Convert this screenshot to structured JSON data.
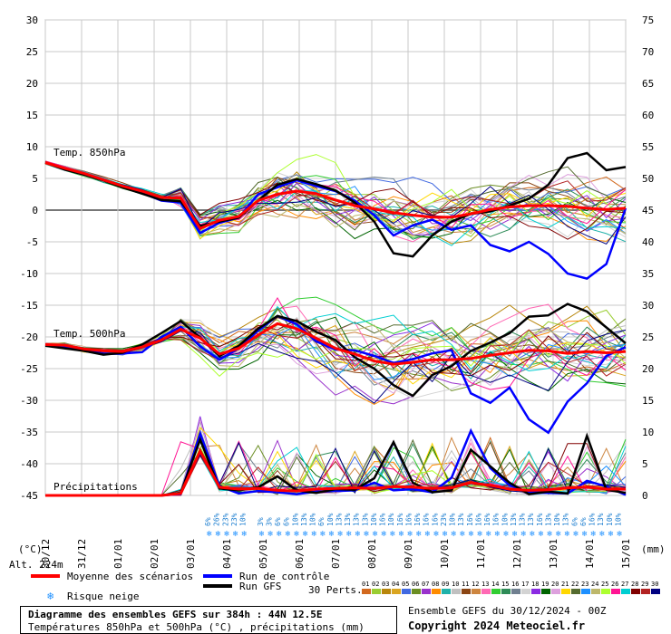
{
  "chart_data": {
    "type": "line",
    "title": "Diagramme des ensembles GEFS sur 384h : 44N 12.5E",
    "subtitle": "Températures 850hPa et 500hPa (°C) , précipitations (mm)",
    "left_axis": {
      "label": "(°C)",
      "ticks": [
        30,
        25,
        20,
        15,
        10,
        5,
        0,
        -5,
        -10,
        -15,
        -20,
        -25,
        -30,
        -35,
        -40,
        -45
      ],
      "range": [
        -45,
        30
      ]
    },
    "right_axis": {
      "label": "(mm)",
      "ticks": [
        75,
        70,
        65,
        60,
        55,
        50,
        45,
        40,
        35,
        30,
        25,
        20,
        15,
        10,
        5,
        0
      ],
      "range": [
        0,
        75
      ]
    },
    "x_dates": [
      "30/12",
      "31/12",
      "01/01",
      "02/01",
      "03/01",
      "04/01",
      "05/01",
      "06/01",
      "07/01",
      "08/01",
      "09/01",
      "10/01",
      "11/01",
      "12/01",
      "13/01",
      "14/01",
      "15/01"
    ],
    "panel_labels": {
      "t850": "Temp. 850hPa",
      "t500": "Temp. 500hPa",
      "precip": "Précipitations"
    },
    "grid": true,
    "series": [
      {
        "name": "Moyenne des scénarios",
        "color": "#ff0000",
        "t850": [
          7.5,
          6.6,
          5.8,
          4.8,
          3.8,
          3.0,
          2.0,
          1.9,
          -2.9,
          -1.6,
          -1.0,
          1.5,
          2.5,
          3.0,
          2.6,
          1.6,
          0.7,
          0.2,
          -0.4,
          -0.8,
          -1.1,
          -1.1,
          -0.6,
          0.1,
          0.5,
          0.7,
          0.7,
          0.6,
          0.3,
          0.1,
          0.3
        ],
        "t500": [
          -21.2,
          -21.3,
          -21.9,
          -22.2,
          -22.3,
          -21.6,
          -20.5,
          -18.8,
          -20.2,
          -22.7,
          -21.8,
          -19.7,
          -17.9,
          -18.7,
          -20.2,
          -21.8,
          -22.7,
          -23.8,
          -24.3,
          -24.0,
          -23.6,
          -23.6,
          -23.4,
          -22.9,
          -22.5,
          -22.1,
          -22.2,
          -22.6,
          -22.3,
          -22.5,
          -22.3
        ],
        "precip": [
          0,
          0,
          0,
          0,
          0,
          0,
          0,
          0.3,
          7.0,
          1.3,
          1.0,
          1.1,
          0.8,
          0.7,
          1.0,
          1.1,
          1.2,
          1.1,
          1.4,
          1.3,
          1.1,
          1.2,
          2.0,
          1.6,
          1.0,
          0.8,
          0.9,
          1.2,
          1.3,
          1.0,
          1.0
        ]
      },
      {
        "name": "Run de contrôle",
        "color": "#0000ff",
        "t850": [
          7.5,
          6.4,
          5.6,
          4.7,
          3.7,
          2.7,
          1.5,
          1.2,
          -3.6,
          -2.0,
          -1.2,
          2.5,
          3.6,
          4.7,
          3.8,
          3.0,
          1.5,
          -0.8,
          -4.0,
          -2.4,
          -1.5,
          -3.1,
          -2.4,
          -5.5,
          -6.5,
          -5.0,
          -6.9,
          -10.0,
          -10.8,
          -8.5,
          0.3
        ],
        "t500": [
          -21.2,
          -21.6,
          -22.2,
          -22.7,
          -22.6,
          -22.4,
          -20.0,
          -18.4,
          -21.5,
          -23.6,
          -21.8,
          -19.0,
          -16.7,
          -18.0,
          -20.7,
          -22.0,
          -22.1,
          -23.0,
          -24.1,
          -23.5,
          -22.6,
          -22.1,
          -28.9,
          -30.4,
          -28.0,
          -33.0,
          -35.1,
          -30.2,
          -27.3,
          -23.0,
          -21.6
        ],
        "precip": [
          0,
          0,
          0,
          0,
          0,
          0,
          0,
          0.2,
          9.8,
          1.5,
          0.3,
          0.7,
          0.5,
          0.2,
          0.6,
          0.7,
          0.8,
          2.0,
          0.8,
          1.0,
          0.5,
          2.8,
          10.2,
          4.3,
          1.6,
          0.5,
          0.4,
          0.3,
          2.3,
          1.4,
          0.1
        ]
      },
      {
        "name": "Run GFS",
        "color": "#000000",
        "t850": [
          7.5,
          6.4,
          5.6,
          4.7,
          3.6,
          2.6,
          1.6,
          1.4,
          -2.5,
          -1.8,
          -1.2,
          1.5,
          4.0,
          4.9,
          4.1,
          3.1,
          1.2,
          -1.8,
          -6.8,
          -7.3,
          -4.0,
          -1.8,
          -0.6,
          -0.2,
          0.7,
          1.8,
          4.0,
          8.2,
          9.0,
          6.3,
          6.8
        ],
        "t500": [
          -21.4,
          -21.8,
          -22.2,
          -22.8,
          -22.5,
          -21.2,
          -19.4,
          -17.5,
          -20.1,
          -23.0,
          -21.4,
          -18.7,
          -16.7,
          -17.5,
          -19.2,
          -20.5,
          -23.2,
          -25.0,
          -27.6,
          -29.3,
          -26.0,
          -24.6,
          -22.2,
          -20.9,
          -19.4,
          -16.8,
          -16.6,
          -14.8,
          -16.0,
          -18.5,
          -21.0
        ],
        "precip": [
          0,
          0,
          0,
          0,
          0,
          0,
          0,
          0.4,
          8.8,
          1.1,
          0.8,
          1.3,
          3.0,
          0.8,
          0.4,
          1.0,
          0.9,
          2.7,
          8.4,
          2.0,
          0.5,
          0.8,
          7.2,
          4.6,
          2.0,
          0.2,
          0.6,
          0.3,
          9.4,
          0.9,
          0.4
        ]
      }
    ],
    "snow_risk_pct": [
      "6%",
      "26%",
      "23%",
      "23%",
      "10%",
      "",
      "3%",
      "3%",
      "6%",
      "6%",
      "10%",
      "13%",
      "10%",
      "6%",
      "10%",
      "13%",
      "13%",
      "13%",
      "13%",
      "10%",
      "16%",
      "10%",
      "16%",
      "16%",
      "16%",
      "16%",
      "16%",
      "23%",
      "10%",
      "13%",
      "16%",
      "16%",
      "16%",
      "16%",
      "10%",
      "13%",
      "13%",
      "13%",
      "16%",
      "13%",
      "10%",
      "13%",
      "6%",
      "6%",
      "16%",
      "13%",
      "10%",
      "10%"
    ]
  },
  "legend": {
    "alt": "Alt. 224m",
    "mean": "Moyenne des scénarios",
    "control": "Run de contrôle",
    "gfs": "Run GFS",
    "snow": "Risque neige",
    "perts_label": "30 Perts.",
    "perts": [
      "01",
      "02",
      "03",
      "04",
      "05",
      "06",
      "07",
      "08",
      "09",
      "10",
      "11",
      "12",
      "13",
      "14",
      "15",
      "16",
      "17",
      "18",
      "19",
      "20",
      "21",
      "22",
      "23",
      "24",
      "25",
      "26",
      "27",
      "28",
      "29",
      "30"
    ],
    "pert_colors": [
      "#d2691e",
      "#9acd32",
      "#b8860b",
      "#daa520",
      "#4169e1",
      "#6b8e23",
      "#9932cc",
      "#ff8c00",
      "#20b2aa",
      "#c0c0c0",
      "#8b4513",
      "#cd853f",
      "#ff69b4",
      "#32cd32",
      "#2e8b57",
      "#708090",
      "#d3d3d3",
      "#8a2be2",
      "#006400",
      "#dda0dd",
      "#ffd700",
      "#556b2f",
      "#1e90ff",
      "#bdb76b",
      "#adff2f",
      "#ff1493",
      "#00ced1",
      "#800000",
      "#b22222",
      "#000080"
    ]
  },
  "footer": {
    "title": "Diagramme des ensembles GEFS sur 384h : 44N 12.5E",
    "subtitle": "Températures 850hPa et 500hPa (°C) , précipitations (mm)",
    "run": "Ensemble GEFS du 30/12/2024 - 00Z",
    "copyright": "Copyright 2024 Meteociel.fr"
  }
}
